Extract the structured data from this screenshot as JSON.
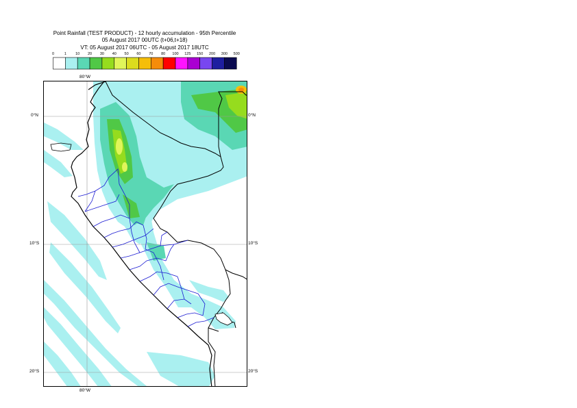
{
  "title": {
    "line1": "Point Rainfall (TEST PRODUCT) - 12 hourly accumulation - 95th Percentile",
    "line2": "05 August 2017 00UTC (t+06,t+18)",
    "line3": "VT: 05 August 2017 06UTC - 05 August 2017 18UTC"
  },
  "legend": {
    "thresholds": [
      "0",
      "1",
      "10",
      "20",
      "30",
      "40",
      "50",
      "60",
      "70",
      "80",
      "100",
      "125",
      "150",
      "200",
      "300",
      "500"
    ],
    "colors": [
      "#ffffff",
      "#aaf0f0",
      "#5ad7b4",
      "#50c846",
      "#96dc1e",
      "#e1f55a",
      "#dcdc1e",
      "#f5be0a",
      "#f58c0a",
      "#ff0000",
      "#ff14ff",
      "#aa00d2",
      "#7846f0",
      "#1e1ea0",
      "#0a0a50"
    ]
  },
  "map": {
    "lat_labels": [
      "0°N",
      "10°S",
      "20°S"
    ],
    "lon_labels": [
      "80°W",
      "80°W"
    ]
  }
}
